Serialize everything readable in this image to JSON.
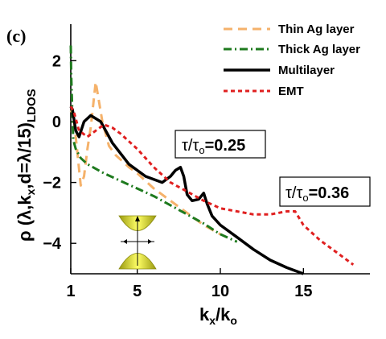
{
  "panel_label": "(c)",
  "chart_data": {
    "type": "line",
    "xlabel": "kx/ko",
    "ylabel": "ρ (λ,kx,d=λ/15)LDOS",
    "xlim": [
      1,
      19
    ],
    "ylim": [
      -5.0,
      3.2
    ],
    "xticks": [
      1,
      5,
      10,
      15
    ],
    "yticks": [
      2,
      0,
      -2,
      -4
    ],
    "grid": false,
    "legend_position": "top-right",
    "series": [
      {
        "name": "Thin Ag layer",
        "color": "#f5b26b",
        "dash": "dashed",
        "x": [
          1.0,
          1.1,
          1.3,
          1.6,
          1.8,
          2.0,
          2.2,
          2.5,
          2.9,
          3.3,
          3.7,
          4.1,
          4.5,
          5.0,
          6.0,
          7.0,
          8.0,
          9.0,
          10.0
        ],
        "y": [
          0.3,
          0.4,
          -0.5,
          -2.1,
          -1.8,
          -0.9,
          -0.2,
          1.3,
          0.0,
          -0.8,
          -1.1,
          -1.3,
          -1.5,
          -1.7,
          -2.2,
          -2.6,
          -3.0,
          -3.4,
          -3.7
        ]
      },
      {
        "name": "Thick Ag layer",
        "color": "#1e7a1e",
        "dash": "dashdot",
        "x": [
          1.0,
          1.03,
          1.08,
          1.15,
          1.3,
          1.6,
          2.0,
          3.0,
          4.0,
          5.0,
          6.0,
          7.0,
          8.0,
          9.0,
          10.0,
          11.0
        ],
        "y": [
          2.5,
          1.5,
          0.5,
          -0.6,
          -0.9,
          -1.2,
          -1.4,
          -1.7,
          -1.95,
          -2.2,
          -2.45,
          -2.75,
          -3.05,
          -3.35,
          -3.7,
          -3.95
        ]
      },
      {
        "name": "Multilayer",
        "color": "#000000",
        "dash": "solid",
        "x": [
          1.0,
          1.1,
          1.3,
          1.5,
          1.8,
          2.2,
          2.8,
          3.5,
          4.5,
          5.5,
          6.5,
          7.0,
          7.3,
          7.6,
          7.8,
          8.0,
          8.3,
          8.7,
          9.0,
          9.2,
          9.5,
          10.0,
          11.0,
          12.0,
          13.0,
          14.0,
          15.0
        ],
        "y": [
          0.5,
          0.4,
          -0.3,
          -0.5,
          0.0,
          0.2,
          0.0,
          -0.7,
          -1.4,
          -1.8,
          -2.0,
          -1.8,
          -1.6,
          -1.5,
          -1.8,
          -2.4,
          -2.6,
          -2.55,
          -2.35,
          -2.7,
          -3.1,
          -3.4,
          -3.8,
          -4.2,
          -4.55,
          -4.8,
          -5.0
        ]
      },
      {
        "name": "EMT",
        "color": "#e02020",
        "dash": "dotted",
        "x": [
          1.0,
          1.2,
          1.5,
          2.0,
          2.5,
          3.0,
          3.5,
          4.0,
          5.0,
          6.0,
          7.0,
          8.0,
          9.0,
          10.0,
          11.0,
          12.0,
          13.0,
          14.0,
          14.5,
          15.0,
          16.0,
          17.0,
          18.0
        ],
        "y": [
          0.5,
          0.3,
          -0.3,
          -0.5,
          -0.3,
          -0.1,
          -0.2,
          -0.4,
          -0.9,
          -1.5,
          -2.0,
          -2.3,
          -2.6,
          -2.85,
          -2.95,
          -3.05,
          -3.05,
          -2.95,
          -2.95,
          -3.4,
          -3.9,
          -4.3,
          -4.7
        ]
      }
    ],
    "annotations": [
      {
        "base": "τ/τ",
        "sub": "o",
        "value": "=0.25"
      },
      {
        "base": "τ/τ",
        "sub": "o",
        "value": "=0.36"
      }
    ]
  }
}
